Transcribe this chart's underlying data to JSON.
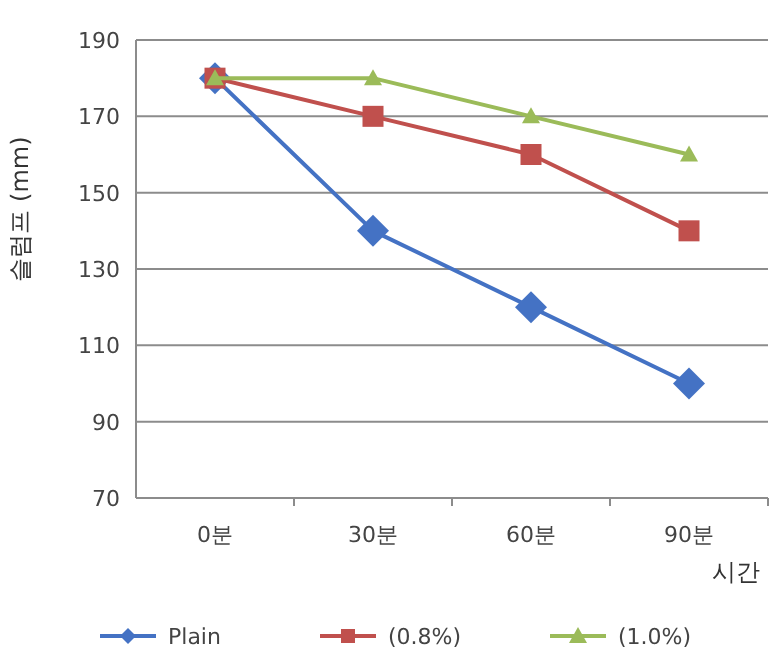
{
  "chart_data": {
    "type": "line",
    "ylabel": "슬럼프 (mm)",
    "xlabel": "시간",
    "categories": [
      "0분",
      "30분",
      "60분",
      "90분"
    ],
    "series": [
      {
        "name": "Plain",
        "color": "#4472c4",
        "marker": "diamond",
        "values": [
          180,
          140,
          120,
          100
        ]
      },
      {
        "name": "(0.8%)",
        "color": "#c0504d",
        "marker": "square",
        "values": [
          180,
          170,
          160,
          140
        ]
      },
      {
        "name": "(1.0%)",
        "color": "#9bbb59",
        "marker": "triangle",
        "values": [
          180,
          180,
          170,
          160
        ]
      }
    ],
    "ylim": [
      70,
      190
    ],
    "yticks": [
      70,
      90,
      110,
      130,
      150,
      170,
      190
    ],
    "grid": "y",
    "legend": "bottom"
  }
}
